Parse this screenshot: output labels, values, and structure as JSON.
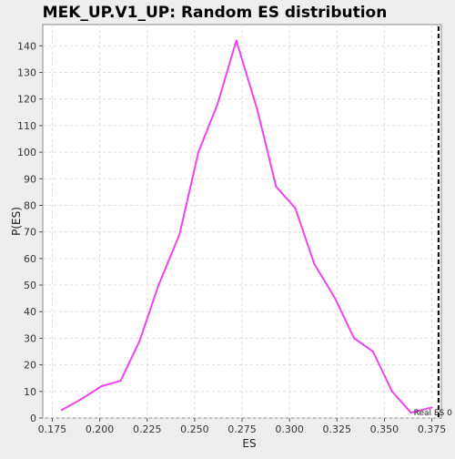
{
  "chart_data": {
    "type": "line",
    "title": "MEK_UP.V1_UP: Random ES distribution",
    "xlabel": "ES",
    "ylabel": "P(ES)",
    "xlim": [
      0.17,
      0.38
    ],
    "ylim": [
      0,
      148
    ],
    "x_ticks": [
      0.175,
      0.2,
      0.225,
      0.25,
      0.275,
      0.3,
      0.325,
      0.35,
      0.375
    ],
    "y_ticks": [
      0,
      10,
      20,
      30,
      40,
      50,
      60,
      70,
      80,
      90,
      100,
      110,
      120,
      130,
      140
    ],
    "grid": true,
    "series": [
      {
        "color": "#ee44ee",
        "x": [
          0.18,
          0.19,
          0.201,
          0.211,
          0.221,
          0.231,
          0.242,
          0.252,
          0.262,
          0.272,
          0.283,
          0.293,
          0.303,
          0.313,
          0.324,
          0.334,
          0.344,
          0.354,
          0.364,
          0.375
        ],
        "values": [
          3,
          7,
          12,
          14,
          29,
          50,
          69,
          100,
          118,
          142,
          116,
          87,
          79,
          58,
          45,
          30,
          25,
          10,
          2,
          4
        ]
      }
    ],
    "reference_line": {
      "x": 0.3785,
      "label": "Real ES 0",
      "color": "#000000"
    }
  }
}
